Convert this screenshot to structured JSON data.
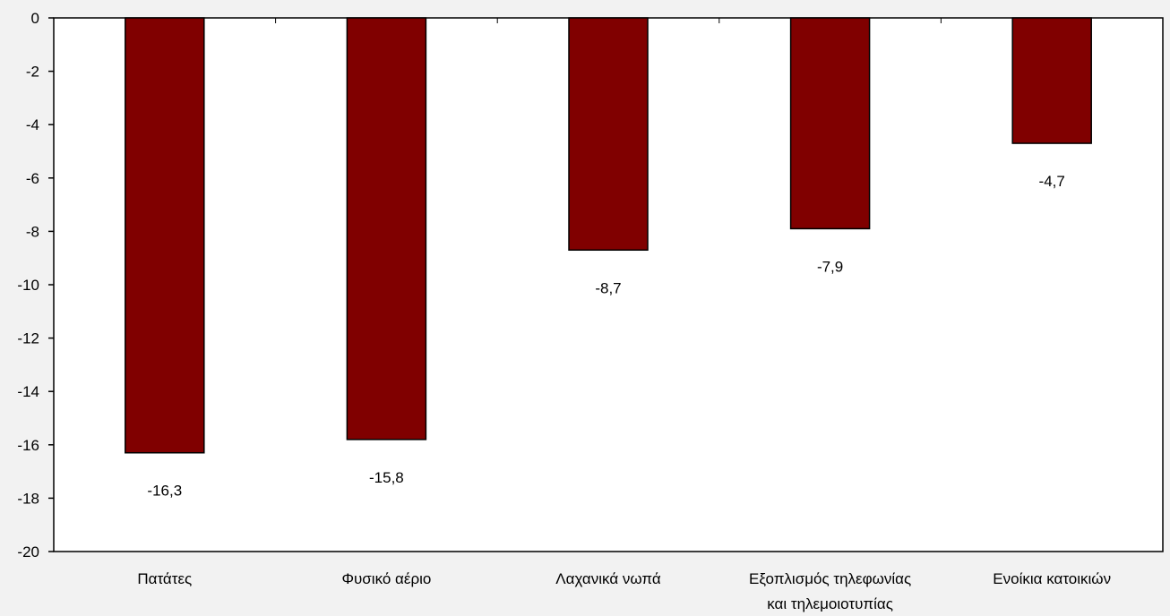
{
  "chart_data": {
    "type": "bar",
    "categories": [
      [
        "Πατάτες"
      ],
      [
        "Φυσικό αέριο"
      ],
      [
        "Λαχανικά νωπά"
      ],
      [
        "Εξοπλισμός τηλεφωνίας",
        "και τηλεμοιοτυπίας"
      ],
      [
        "Ενοίκια κατοικιών"
      ]
    ],
    "values": [
      -16.3,
      -15.8,
      -8.7,
      -7.9,
      -4.7
    ],
    "data_labels": [
      "-16,3",
      "-15,8",
      "-8,7",
      "-7,9",
      "-4,7"
    ],
    "title": "",
    "xlabel": "",
    "ylabel": "",
    "ylim": [
      -20,
      0
    ],
    "yticks": [
      0,
      -2,
      -4,
      -6,
      -8,
      -10,
      -12,
      -14,
      -16,
      -18,
      -20
    ],
    "ytick_labels": [
      "0",
      "-2",
      "-4",
      "-6",
      "-8",
      "-10",
      "-12",
      "-14",
      "-16",
      "-18",
      "-20"
    ],
    "grid": false,
    "legend": "none",
    "colors": {
      "bar": "#800000",
      "bar_stroke": "#000000",
      "plot_background": "#ffffff",
      "page_background": "#f2f2f2",
      "axis": "#000000"
    }
  }
}
